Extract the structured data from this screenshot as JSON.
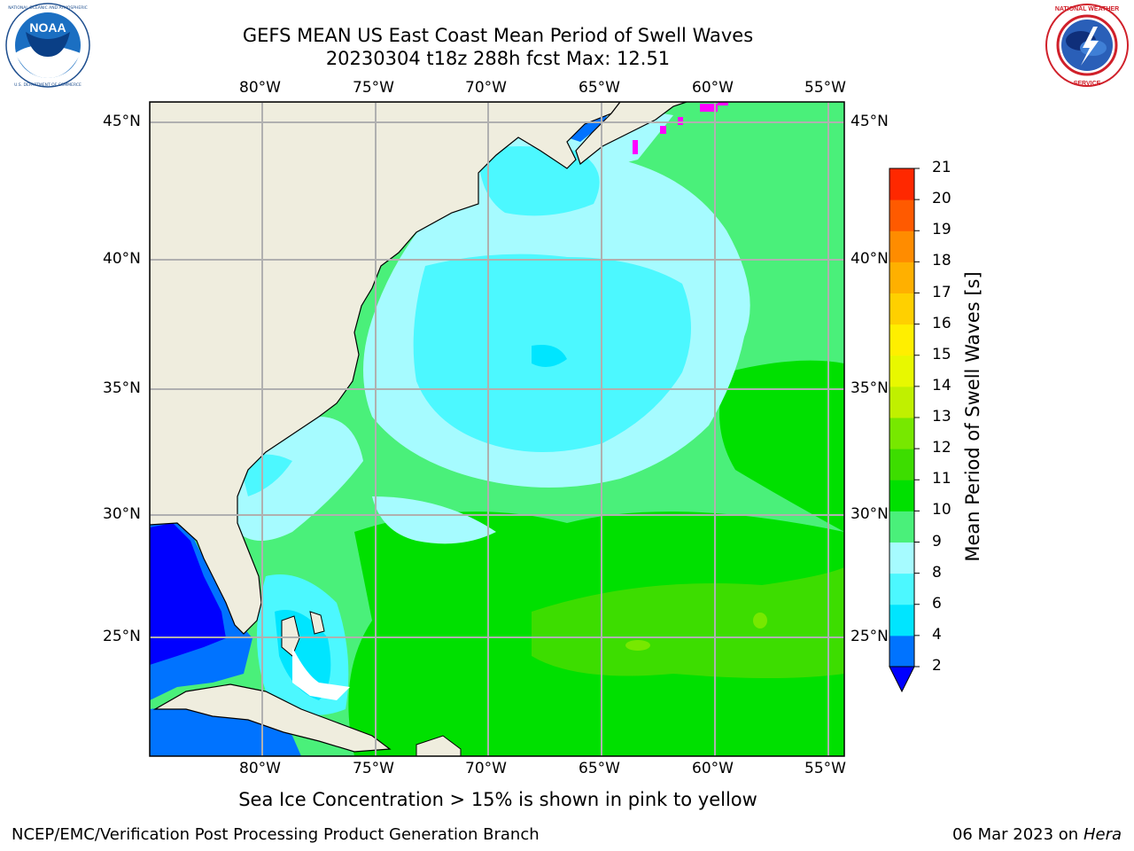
{
  "title": {
    "line1": "GEFS MEAN US East Coast Mean Period of Swell Waves",
    "line2": "20230304 t18z 288h fcst   Max: 12.51"
  },
  "logos": {
    "noaa": {
      "text": "NOAA",
      "ring_text": "NATIONAL OCEANIC AND ATMOSPHERIC ADMINISTRATION · U.S. DEPARTMENT OF COMMERCE"
    },
    "nws": {
      "ring_text": "NATIONAL WEATHER SERVICE"
    }
  },
  "map": {
    "region": "US East Coast / Western North Atlantic",
    "lon_labels": [
      "80°W",
      "75°W",
      "70°W",
      "65°W",
      "60°W",
      "55°W"
    ],
    "lat_labels": [
      "45°N",
      "40°N",
      "35°N",
      "30°N",
      "25°N"
    ],
    "grid": true,
    "colors": {
      "land": "#efedde",
      "gridline": "#b0b0b0",
      "coastline": "#000000",
      "sea_ice": "#ff00ff"
    }
  },
  "colorbar": {
    "title": "Mean Period of Swell Waves [s]",
    "ticks": [
      "2",
      "4",
      "6",
      "8",
      "9",
      "10",
      "11",
      "12",
      "13",
      "14",
      "15",
      "16",
      "17",
      "18",
      "19",
      "20",
      "21"
    ],
    "colors": [
      "#0073ff",
      "#00e5ff",
      "#4cf8ff",
      "#a6fbff",
      "#4af07a",
      "#00e000",
      "#3ddd00",
      "#77e800",
      "#c0f000",
      "#e8f800",
      "#ffef00",
      "#ffd000",
      "#ffb000",
      "#ff8c00",
      "#ff5a00",
      "#ff2800"
    ],
    "under_color": "#0000ff",
    "extend": "min"
  },
  "note": "Sea Ice Concentration > 15% is shown in pink to yellow",
  "footer": {
    "left": "NCEP/EMC/Verification Post Processing Product Generation Branch",
    "right_date": "06 Mar 2023 on",
    "right_host": "Hera"
  }
}
